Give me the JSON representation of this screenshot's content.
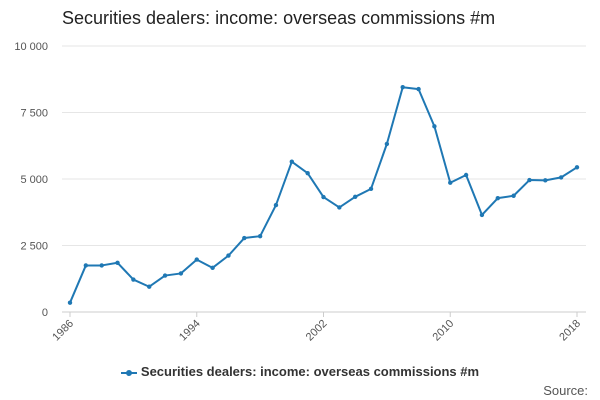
{
  "title": "Securities dealers: income: overseas commissions #m",
  "source_label": "Source:",
  "legend_label": "Securities dealers: income: overseas commissions #m",
  "colors": {
    "series": "#1f78b4",
    "grid": "#e6e6e6",
    "axis": "#cccccc",
    "text": "#555555"
  },
  "chart_data": {
    "type": "line",
    "title": "Securities dealers: income: overseas commissions #m",
    "xlabel": "",
    "ylabel": "",
    "xlim": [
      1986,
      2018
    ],
    "ylim": [
      0,
      10000
    ],
    "y_ticks": [
      0,
      2500,
      5000,
      7500,
      10000
    ],
    "y_tick_labels": [
      "0",
      "2 500",
      "5 000",
      "7 500",
      "10 000"
    ],
    "x_ticks": [
      1986,
      1994,
      2002,
      2010,
      2018
    ],
    "x_tick_labels": [
      "1986",
      "1994",
      "2002",
      "2010",
      "2018"
    ],
    "grid": true,
    "legend_position": "bottom",
    "series": [
      {
        "name": "Securities dealers: income: overseas commissions #m",
        "x": [
          1986,
          1987,
          1988,
          1989,
          1990,
          1991,
          1992,
          1993,
          1994,
          1995,
          1996,
          1997,
          1998,
          1999,
          2000,
          2001,
          2002,
          2003,
          2004,
          2005,
          2006,
          2007,
          2008,
          2009,
          2010,
          2011,
          2012,
          2013,
          2014,
          2015,
          2016,
          2017,
          2018
        ],
        "y": [
          350,
          1750,
          1750,
          1850,
          1220,
          950,
          1370,
          1450,
          1970,
          1660,
          2120,
          2780,
          2850,
          4020,
          5650,
          5220,
          4320,
          3930,
          4330,
          4630,
          6320,
          8450,
          8380,
          6980,
          4860,
          5150,
          3650,
          4280,
          4370,
          4960,
          4950,
          5060,
          5440
        ]
      }
    ]
  }
}
